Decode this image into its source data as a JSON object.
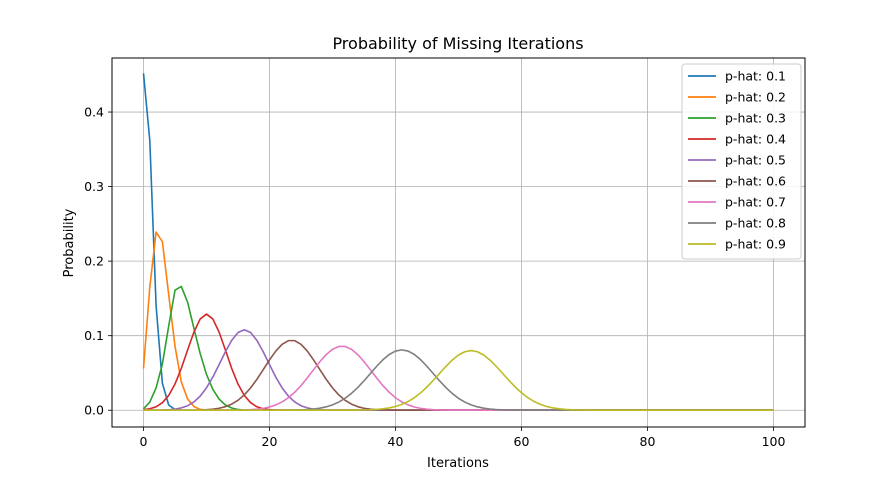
{
  "chart_data": {
    "type": "line",
    "title": "Probability of Missing Iterations",
    "xlabel": "Iterations",
    "ylabel": "Probability",
    "xlim": [
      -5,
      105
    ],
    "ylim": [
      -0.0225,
      0.4725
    ],
    "xticks": [
      0,
      20,
      40,
      60,
      80,
      100
    ],
    "yticks": [
      0.0,
      0.1,
      0.2,
      0.3,
      0.4
    ],
    "xtick_labels": [
      "0",
      "20",
      "40",
      "60",
      "80",
      "100"
    ],
    "ytick_labels": [
      "0.0",
      "0.1",
      "0.2",
      "0.3",
      "0.4"
    ],
    "grid": true,
    "legend_position": "top-right",
    "x": {
      "start": 0,
      "end": 100,
      "step": 1
    },
    "series": [
      {
        "name": "p-hat: 0.1",
        "color": "#1f77b4",
        "anchors": [
          [
            0,
            0.452
          ],
          [
            1,
            0.362
          ],
          [
            2,
            0.14
          ],
          [
            3,
            0.036
          ],
          [
            4,
            0.007
          ],
          [
            5,
            0.001
          ],
          [
            6,
            0.0
          ],
          [
            100,
            0.0
          ]
        ]
      },
      {
        "name": "p-hat: 0.2",
        "color": "#ff7f0e",
        "anchors": [
          [
            0,
            0.056
          ],
          [
            1,
            0.165
          ],
          [
            2,
            0.239
          ],
          [
            3,
            0.226
          ],
          [
            4,
            0.155
          ],
          [
            5,
            0.086
          ],
          [
            6,
            0.038
          ],
          [
            7,
            0.015
          ],
          [
            8,
            0.005
          ],
          [
            9,
            0.001
          ],
          [
            10,
            0.0
          ],
          [
            100,
            0.0
          ]
        ]
      },
      {
        "name": "p-hat: 0.3",
        "color": "#2ca02c",
        "anchors": [
          [
            0,
            0.002
          ],
          [
            1,
            0.011
          ],
          [
            2,
            0.03
          ],
          [
            3,
            0.062
          ],
          [
            4,
            0.113
          ],
          [
            5,
            0.161
          ],
          [
            6,
            0.166
          ],
          [
            7,
            0.145
          ],
          [
            8,
            0.11
          ],
          [
            9,
            0.076
          ],
          [
            10,
            0.048
          ],
          [
            11,
            0.028
          ],
          [
            12,
            0.015
          ],
          [
            13,
            0.007
          ],
          [
            14,
            0.003
          ],
          [
            15,
            0.001
          ],
          [
            16,
            0.0
          ],
          [
            100,
            0.0
          ]
        ]
      }
    ],
    "gaussian_series": [
      {
        "name": "p-hat: 0.4",
        "color": "#d62728",
        "peak": 10,
        "height": 0.129,
        "sigma": 3.1
      },
      {
        "name": "p-hat: 0.5",
        "color": "#9467bd",
        "peak": 16,
        "height": 0.108,
        "sigma": 3.75
      },
      {
        "name": "p-hat: 0.6",
        "color": "#8c564b",
        "peak": 23.5,
        "height": 0.094,
        "sigma": 4.3
      },
      {
        "name": "p-hat: 0.7",
        "color": "#e377c2",
        "peak": 31.5,
        "height": 0.086,
        "sigma": 4.7
      },
      {
        "name": "p-hat: 0.8",
        "color": "#7f7f7f",
        "peak": 41,
        "height": 0.081,
        "sigma": 5.0
      },
      {
        "name": "p-hat: 0.9",
        "color": "#bcbd22",
        "peak": 52,
        "height": 0.08,
        "sigma": 5.1
      }
    ]
  }
}
